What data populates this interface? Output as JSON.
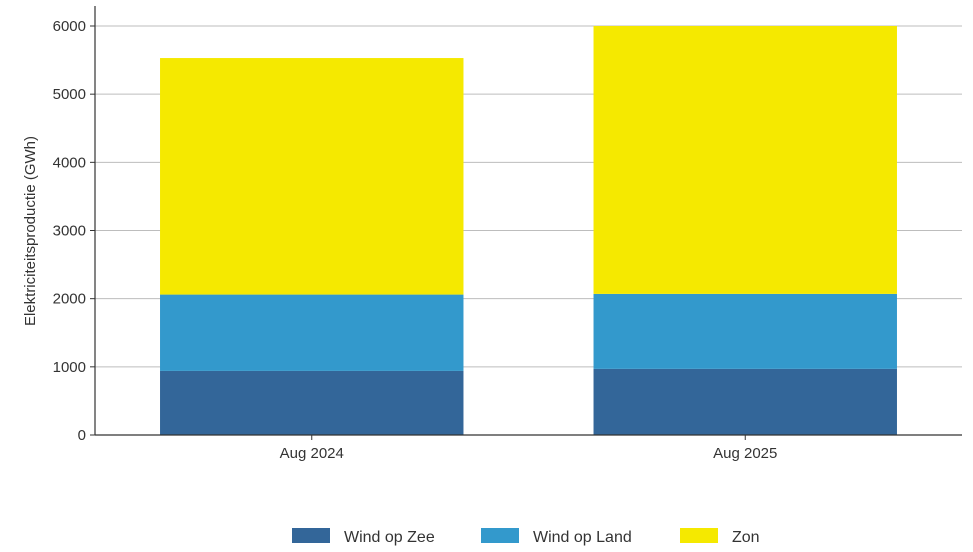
{
  "chart_data": {
    "type": "bar",
    "stacked": true,
    "title": "",
    "xlabel": "",
    "ylabel": "Elektriciteitsproductie (GWh)",
    "ylim": [
      0,
      6000
    ],
    "yticks": [
      0,
      1000,
      2000,
      3000,
      4000,
      5000,
      6000
    ],
    "grid": true,
    "legend_position": "bottom",
    "categories": [
      "Aug 2024",
      "Aug 2025"
    ],
    "series": [
      {
        "name": "Wind op Zee",
        "color": "#336699",
        "values": [
          940,
          970
        ]
      },
      {
        "name": "Wind op Land",
        "color": "#3399cc",
        "values": [
          1120,
          1100
        ]
      },
      {
        "name": "Zon",
        "color": "#f5e900",
        "values": [
          3470,
          3930
        ]
      }
    ]
  }
}
